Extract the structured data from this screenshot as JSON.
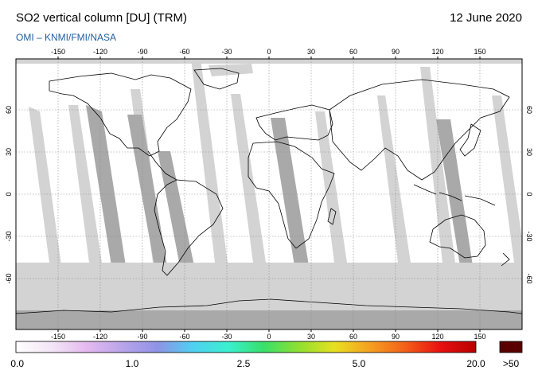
{
  "header": {
    "title": "SO2 vertical column [DU] (TRM)",
    "date": "12 June 2020",
    "source": "OMI  –  KNMI/FMI/NASA"
  },
  "axes": {
    "lon_ticks": [
      "-150",
      "-120",
      "-90",
      "-60",
      "-30",
      "0",
      "30",
      "60",
      "90",
      "120",
      "150"
    ],
    "lat_ticks": [
      "60",
      "30",
      "0",
      "-30",
      "-60"
    ]
  },
  "colorbar": {
    "labels": [
      "0.0",
      "1.0",
      "2.5",
      "5.0",
      "20.0"
    ],
    "over_label": ">50",
    "colors": [
      "#ffffff",
      "#f3e6f7",
      "#e5b9ef",
      "#b9a4ea",
      "#8f93e6",
      "#4fd0f2",
      "#3af0d0",
      "#38e06a",
      "#90e030",
      "#e8e020",
      "#f5a020",
      "#f36018",
      "#e81010",
      "#b80000"
    ],
    "over_color": "#5a0000"
  },
  "colors": {
    "no_data": "#d3d3d3",
    "orbit_stripe": "#a9a9a9",
    "background": "#ffffff",
    "source_text": "#1f5f9e"
  }
}
